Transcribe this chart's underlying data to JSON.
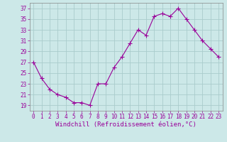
{
  "x": [
    0,
    1,
    2,
    3,
    4,
    5,
    6,
    7,
    8,
    9,
    10,
    11,
    12,
    13,
    14,
    15,
    16,
    17,
    18,
    19,
    20,
    21,
    22,
    23
  ],
  "y": [
    27,
    24,
    22,
    21,
    20.5,
    19.5,
    19.5,
    19,
    23,
    23,
    26,
    28,
    30.5,
    33,
    32,
    35.5,
    36,
    35.5,
    37,
    35,
    33,
    31,
    29.5,
    28
  ],
  "line_color": "#990099",
  "marker": "+",
  "marker_size": 4,
  "bg_color": "#cce8e8",
  "grid_color": "#aacccc",
  "xlabel": "Windchill (Refroidissement éolien,°C)",
  "xlabel_color": "#990099",
  "tick_color": "#990099",
  "ylim": [
    18,
    38
  ],
  "yticks": [
    19,
    21,
    23,
    25,
    27,
    29,
    31,
    33,
    35,
    37
  ],
  "xticks": [
    0,
    1,
    2,
    3,
    4,
    5,
    6,
    7,
    8,
    9,
    10,
    11,
    12,
    13,
    14,
    15,
    16,
    17,
    18,
    19,
    20,
    21,
    22,
    23
  ],
  "xlabel_fontsize": 6.5,
  "tick_fontsize": 5.5
}
